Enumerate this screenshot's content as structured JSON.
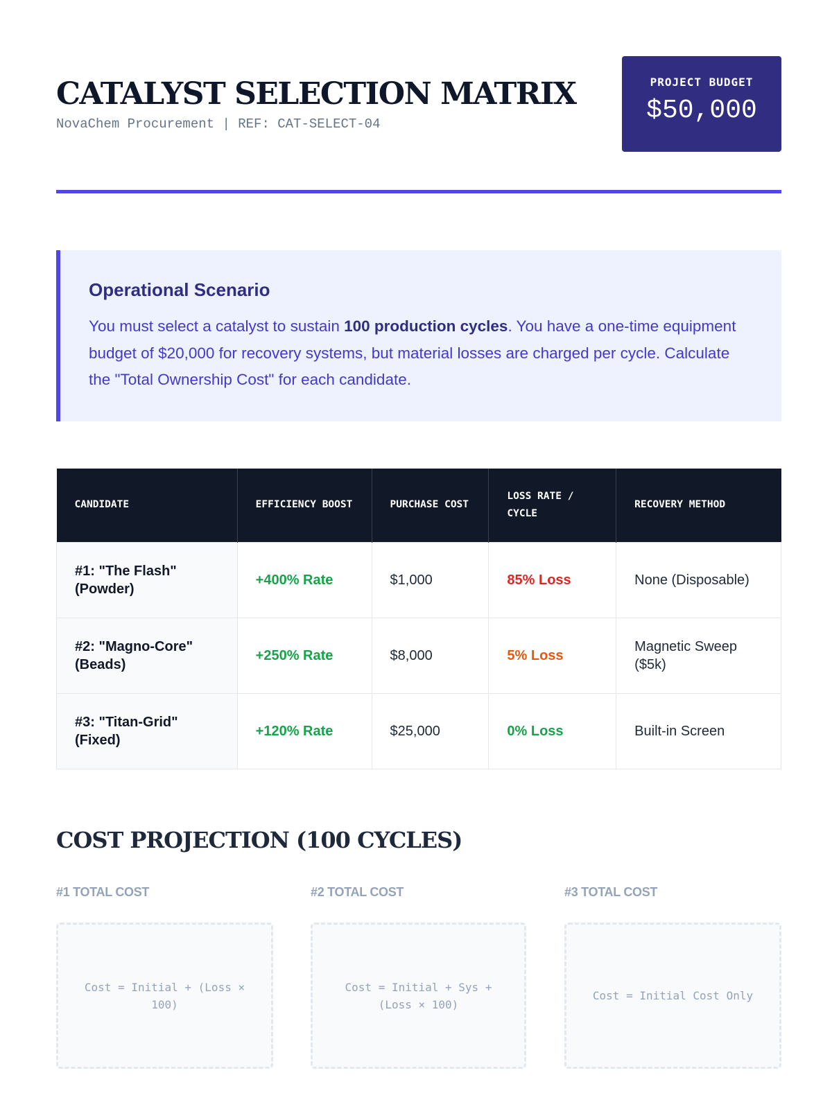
{
  "header": {
    "title": "CATALYST SELECTION MATRIX",
    "subtitle": "NovaChem Procurement | REF: CAT-SELECT-04",
    "budget_label": "PROJECT BUDGET",
    "budget_value": "$50,000"
  },
  "scenario": {
    "heading": "Operational Scenario",
    "text_before": "You must select a catalyst to sustain ",
    "text_bold": "100 production cycles",
    "text_after": ". You have a one-time equipment budget of $20,000 for recovery systems, but material losses are charged per cycle. Calculate the \"Total Ownership Cost\" for each candidate."
  },
  "table": {
    "headers": [
      "CANDIDATE",
      "EFFICIENCY BOOST",
      "PURCHASE COST",
      "LOSS RATE / CYCLE",
      "RECOVERY METHOD"
    ],
    "rows": [
      {
        "candidate": "#1: \"The Flash\" (Powder)",
        "boost": "+400% Rate",
        "cost": "$1,000",
        "loss": "85% Loss",
        "recovery": "None (Disposable)"
      },
      {
        "candidate": "#2: \"Magno-Core\" (Beads)",
        "boost": "+250% Rate",
        "cost": "$8,000",
        "loss": "5% Loss",
        "recovery": "Magnetic Sweep ($5k)"
      },
      {
        "candidate": "#3: \"Titan-Grid\" (Fixed)",
        "boost": "+120% Rate",
        "cost": "$25,000",
        "loss": "0% Loss",
        "recovery": "Built-in Screen"
      }
    ]
  },
  "projection": {
    "heading": "COST PROJECTION (100 CYCLES)",
    "items": [
      {
        "label": "#1 TOTAL COST",
        "formula": "Cost = Initial + (Loss × 100)"
      },
      {
        "label": "#2 TOTAL COST",
        "formula": "Cost = Initial + Sys + (Loss × 100)"
      },
      {
        "label": "#3 TOTAL COST",
        "formula": "Cost = Initial Cost Only"
      }
    ]
  },
  "colors": {
    "accent": "#4f46e5",
    "budget_bg": "#312e81",
    "positive": "#16a34a",
    "danger": "#dc2626",
    "warning": "#ea580c"
  }
}
